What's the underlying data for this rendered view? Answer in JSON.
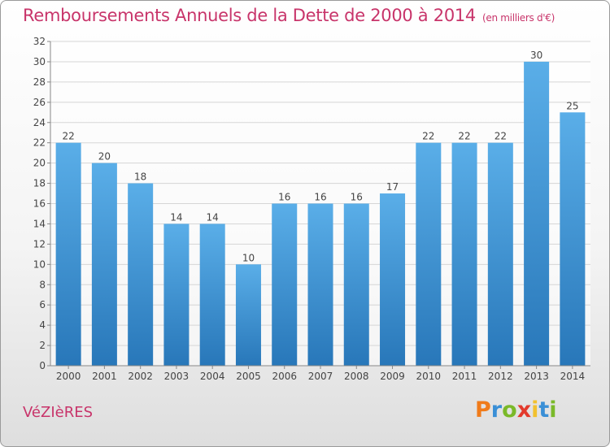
{
  "header": {
    "title": "Remboursements Annuels de la Dette de 2000 à 2014",
    "unit": "(en milliers d'€)"
  },
  "footer": {
    "place": "VéZIèRES",
    "brand_letters": [
      "P",
      "r",
      "o",
      "x",
      "i",
      "t",
      "i"
    ],
    "brand_colors": [
      "#f07b1a",
      "#3a8fd6",
      "#7ab929",
      "#e33a2c",
      "#f2c12e",
      "#3a8fd6",
      "#7ab929"
    ]
  },
  "colors": {
    "title": "#c8346a",
    "bar_light": "#5aaee8",
    "bar_dark": "#2877b9"
  },
  "chart_data": {
    "type": "bar",
    "title": "Remboursements Annuels de la Dette de 2000 à 2014",
    "subtitle": "(en milliers d'€)",
    "categories": [
      "2000",
      "2001",
      "2002",
      "2003",
      "2004",
      "2005",
      "2006",
      "2007",
      "2008",
      "2009",
      "2010",
      "2011",
      "2012",
      "2013",
      "2014"
    ],
    "values": [
      22,
      20,
      18,
      14,
      14,
      10,
      16,
      16,
      16,
      17,
      22,
      22,
      22,
      30,
      25
    ],
    "ylim": [
      0,
      32
    ],
    "yticks": [
      0,
      2,
      4,
      6,
      8,
      10,
      12,
      14,
      16,
      18,
      20,
      22,
      24,
      26,
      28,
      30,
      32
    ],
    "grid": true,
    "xlabel": "",
    "ylabel": ""
  }
}
